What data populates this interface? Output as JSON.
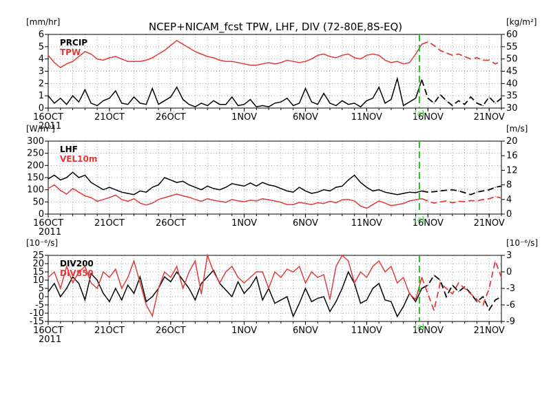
{
  "title": "NCEP+NICAM_fcst TPW, LHF, DIV (72-80E,8S-EQ)",
  "colors": {
    "black": "#000000",
    "red": "#e03a3a",
    "green": "#22bb22",
    "grid": "#a0a0a0"
  },
  "x_axis": {
    "days": 37,
    "ticks": [
      {
        "day": 0,
        "label": "16OCT"
      },
      {
        "day": 5,
        "label": "21OCT"
      },
      {
        "day": 10,
        "label": "26OCT"
      },
      {
        "day": 16,
        "label": "1NOV"
      },
      {
        "day": 21,
        "label": "6NOV"
      },
      {
        "day": 26,
        "label": "11NOV"
      },
      {
        "day": 31,
        "label": "16NOV"
      },
      {
        "day": 36,
        "label": "21NOV"
      }
    ],
    "year_label": "2011",
    "forecast_start_day": 30.3,
    "forecast_marker_label": "[a]"
  },
  "chart_data": [
    {
      "type": "line",
      "panel": "PRCIP / TPW",
      "left_axis": {
        "unit": "[mm/hr]",
        "lim": [
          0,
          6
        ],
        "ticks": [
          0,
          1,
          2,
          3,
          4,
          5,
          6
        ]
      },
      "right_axis": {
        "unit": "[kg/m²]",
        "lim": [
          30,
          60
        ],
        "ticks": [
          30,
          35,
          40,
          45,
          50,
          55,
          60
        ]
      },
      "series": [
        {
          "name": "PRCIP",
          "axis": "left",
          "color": "black",
          "x": [
            0,
            0.5,
            1,
            1.5,
            2,
            2.5,
            3,
            3.5,
            4,
            4.5,
            5,
            5.5,
            6,
            6.5,
            7,
            7.5,
            8,
            8.5,
            9,
            9.5,
            10,
            10.5,
            11,
            11.5,
            12,
            12.5,
            13,
            13.5,
            14,
            14.5,
            15,
            15.5,
            16,
            16.5,
            17,
            17.5,
            18,
            18.5,
            19,
            19.5,
            20,
            20.5,
            21,
            21.5,
            22,
            22.5,
            23,
            23.5,
            24,
            24.5,
            25,
            25.5,
            26,
            26.5,
            27,
            27.5,
            28,
            28.5,
            29,
            29.5,
            30,
            30.5,
            31,
            31.5,
            32,
            32.5,
            33,
            33.5,
            34,
            34.5,
            35,
            35.5,
            36,
            36.5,
            37
          ],
          "values": [
            1.0,
            0.4,
            0.8,
            0.3,
            1.0,
            0.5,
            1.5,
            0.4,
            0.2,
            0.6,
            0.8,
            1.4,
            0.4,
            0.3,
            0.9,
            0.4,
            0.3,
            1.6,
            0.3,
            0.6,
            0.9,
            1.7,
            0.7,
            0.3,
            0.1,
            0.4,
            0.2,
            0.6,
            0.3,
            0.3,
            0.9,
            0.2,
            0.3,
            0.7,
            0.1,
            0.2,
            0.1,
            0.4,
            0.5,
            0.8,
            0.2,
            0.4,
            1.6,
            0.5,
            0.3,
            1.2,
            0.4,
            0.2,
            0.6,
            0.3,
            0.4,
            0.1,
            0.6,
            0.8,
            1.7,
            0.4,
            0.7,
            2.4,
            0.2,
            0.5,
            0.8,
            2.3,
            0.8,
            0.4,
            1.1,
            0.6,
            0.2,
            0.6,
            0.3,
            0.9,
            0.4,
            0.2,
            0.9,
            0.4,
            0.8
          ]
        },
        {
          "name": "TPW",
          "axis": "right",
          "color": "red",
          "x": [
            0,
            0.5,
            1,
            1.5,
            2,
            2.5,
            3,
            3.5,
            4,
            4.5,
            5,
            5.5,
            6,
            6.5,
            7,
            7.5,
            8,
            8.5,
            9,
            9.5,
            10,
            10.5,
            11,
            11.5,
            12,
            12.5,
            13,
            13.5,
            14,
            14.5,
            15,
            15.5,
            16,
            16.5,
            17,
            17.5,
            18,
            18.5,
            19,
            19.5,
            20,
            20.5,
            21,
            21.5,
            22,
            22.5,
            23,
            23.5,
            24,
            24.5,
            25,
            25.5,
            26,
            26.5,
            27,
            27.5,
            28,
            28.5,
            29,
            29.5,
            30,
            30.5,
            31,
            31.5,
            32,
            32.5,
            33,
            33.5,
            34,
            34.5,
            35,
            35.5,
            36,
            36.5,
            37
          ],
          "values": [
            51.5,
            48.5,
            46.5,
            48,
            49,
            51,
            53,
            52,
            50,
            49.5,
            50.5,
            51,
            50,
            49,
            49,
            49,
            49.5,
            50.5,
            52,
            53.5,
            55.5,
            57.5,
            56,
            54.5,
            53,
            52,
            51,
            50.5,
            49.5,
            49,
            49,
            48.5,
            48,
            47.5,
            47.5,
            48,
            48.5,
            48,
            48.5,
            49.5,
            49,
            48.5,
            49,
            50,
            51.5,
            52,
            51,
            50.5,
            51.5,
            52,
            50.5,
            50,
            51.5,
            52,
            51.5,
            49.5,
            48.5,
            49,
            48,
            48.5,
            52,
            56,
            57,
            55.5,
            53.5,
            52.5,
            51.5,
            52,
            51,
            50,
            50.5,
            49.5,
            49.5,
            48,
            49
          ]
        }
      ]
    },
    {
      "type": "line",
      "panel": "LHF / VEL10m",
      "left_axis": {
        "unit": "[W/m²]",
        "lim": [
          0,
          300
        ],
        "ticks": [
          0,
          50,
          100,
          150,
          200,
          250,
          300
        ]
      },
      "right_axis": {
        "unit": "[m/s]",
        "lim": [
          0,
          20
        ],
        "ticks": [
          0,
          4,
          8,
          12,
          16,
          20
        ]
      },
      "series": [
        {
          "name": "LHF",
          "axis": "left",
          "color": "black",
          "x": [
            0,
            0.5,
            1,
            1.5,
            2,
            2.5,
            3,
            3.5,
            4,
            4.5,
            5,
            5.5,
            6,
            6.5,
            7,
            7.5,
            8,
            8.5,
            9,
            9.5,
            10,
            10.5,
            11,
            11.5,
            12,
            12.5,
            13,
            13.5,
            14,
            14.5,
            15,
            15.5,
            16,
            16.5,
            17,
            17.5,
            18,
            18.5,
            19,
            19.5,
            20,
            20.5,
            21,
            21.5,
            22,
            22.5,
            23,
            23.5,
            24,
            24.5,
            25,
            25.5,
            26,
            26.5,
            27,
            27.5,
            28,
            28.5,
            29,
            29.5,
            30,
            30.5,
            31,
            31.5,
            32,
            32.5,
            33,
            33.5,
            34,
            34.5,
            35,
            35.5,
            36,
            36.5,
            37
          ],
          "values": [
            145,
            160,
            140,
            150,
            172,
            150,
            160,
            130,
            115,
            100,
            110,
            100,
            90,
            85,
            80,
            95,
            90,
            110,
            120,
            150,
            140,
            130,
            135,
            120,
            110,
            100,
            115,
            105,
            100,
            110,
            125,
            120,
            115,
            128,
            115,
            130,
            120,
            115,
            105,
            95,
            90,
            110,
            95,
            85,
            90,
            100,
            95,
            110,
            115,
            140,
            160,
            130,
            110,
            95,
            100,
            90,
            85,
            80,
            85,
            90,
            88,
            95,
            90,
            92,
            95,
            98,
            100,
            95,
            88,
            80,
            90,
            95,
            100,
            110,
            115
          ]
        },
        {
          "name": "VEL10m",
          "axis": "right",
          "color": "red",
          "x": [
            0,
            0.5,
            1,
            1.5,
            2,
            2.5,
            3,
            3.5,
            4,
            4.5,
            5,
            5.5,
            6,
            6.5,
            7,
            7.5,
            8,
            8.5,
            9,
            9.5,
            10,
            10.5,
            11,
            11.5,
            12,
            12.5,
            13,
            13.5,
            14,
            14.5,
            15,
            15.5,
            16,
            16.5,
            17,
            17.5,
            18,
            18.5,
            19,
            19.5,
            20,
            20.5,
            21,
            21.5,
            22,
            22.5,
            23,
            23.5,
            24,
            24.5,
            25,
            25.5,
            26,
            26.5,
            27,
            27.5,
            28,
            28.5,
            29,
            29.5,
            30,
            30.5,
            31,
            31.5,
            32,
            32.5,
            33,
            33.5,
            34,
            34.5,
            35,
            35.5,
            36,
            36.5,
            37
          ],
          "values": [
            7,
            8,
            6.5,
            5.5,
            7,
            6,
            5,
            4.5,
            3.5,
            4,
            4.5,
            5.2,
            4,
            3.5,
            4.2,
            3,
            2.5,
            3,
            4,
            4.5,
            5,
            5.5,
            5,
            4.6,
            4,
            3.5,
            4.2,
            3.8,
            3.5,
            3.2,
            4,
            3.6,
            3.4,
            3.8,
            3.6,
            4.2,
            3.9,
            3.6,
            3.2,
            2.6,
            2.6,
            3.2,
            2.9,
            2.6,
            3.1,
            2.9,
            3.5,
            3.1,
            3.9,
            4,
            3.6,
            2.2,
            1.6,
            2.6,
            3.6,
            3,
            2.3,
            2.6,
            2.9,
            3.6,
            3.9,
            4.2,
            3.6,
            3,
            3.3,
            3.6,
            3.1,
            3.5,
            3.4,
            3.7,
            3.6,
            4,
            4.2,
            4.8,
            4.4
          ]
        }
      ]
    },
    {
      "type": "line",
      "panel": "DIV200 / DIV850",
      "left_axis": {
        "unit": "[10⁻⁶/s]",
        "lim": [
          -15,
          25
        ],
        "ticks": [
          -15,
          -10,
          -5,
          0,
          5,
          10,
          15,
          20,
          25
        ]
      },
      "right_axis": {
        "unit": "[10⁻⁶/s]",
        "lim": [
          -9,
          3
        ],
        "ticks": [
          -9,
          -6,
          -3,
          0,
          3
        ]
      },
      "series": [
        {
          "name": "DIV200",
          "axis": "left",
          "color": "black",
          "x": [
            0,
            0.5,
            1,
            1.5,
            2,
            2.5,
            3,
            3.5,
            4,
            4.5,
            5,
            5.5,
            6,
            6.5,
            7,
            7.5,
            8,
            8.5,
            9,
            9.5,
            10,
            10.5,
            11,
            11.5,
            12,
            12.5,
            13,
            13.5,
            14,
            14.5,
            15,
            15.5,
            16,
            16.5,
            17,
            17.5,
            18,
            18.5,
            19,
            19.5,
            20,
            20.5,
            21,
            21.5,
            22,
            22.5,
            23,
            23.5,
            24,
            24.5,
            25,
            25.5,
            26,
            26.5,
            27,
            27.5,
            28,
            28.5,
            29,
            29.5,
            30,
            30.5,
            31,
            31.5,
            32,
            32.5,
            33,
            33.5,
            34,
            34.5,
            35,
            35.5,
            36,
            36.5,
            37
          ],
          "values": [
            3,
            8,
            0,
            5,
            12,
            8,
            -2,
            14,
            10,
            2,
            -3,
            5,
            -2,
            7,
            2,
            12,
            -3,
            0,
            5,
            12,
            9,
            15,
            10,
            5,
            -2,
            8,
            12,
            16,
            8,
            4,
            0,
            9,
            2,
            6,
            12,
            -2,
            5,
            -4,
            -2,
            0,
            -12,
            -4,
            5,
            -3,
            -1,
            0,
            -9,
            -3,
            5,
            15,
            8,
            -4,
            -2,
            5,
            8,
            -2,
            -3,
            -12,
            -6,
            2,
            -3,
            5,
            7,
            13,
            10,
            0,
            7,
            3,
            6,
            2,
            -3,
            0,
            -8,
            -2,
            0
          ]
        },
        {
          "name": "DIV850",
          "axis": "right",
          "color": "red",
          "x": [
            0,
            0.5,
            1,
            1.5,
            2,
            2.5,
            3,
            3.5,
            4,
            4.5,
            5,
            5.5,
            6,
            6.5,
            7,
            7.5,
            8,
            8.5,
            9,
            9.5,
            10,
            10.5,
            11,
            11.5,
            12,
            12.5,
            13,
            13.5,
            14,
            14.5,
            15,
            15.5,
            16,
            16.5,
            17,
            17.5,
            18,
            18.5,
            19,
            19.5,
            20,
            20.5,
            21,
            21.5,
            22,
            22.5,
            23,
            23.5,
            24,
            24.5,
            25,
            25.5,
            26,
            26.5,
            27,
            27.5,
            28,
            28.5,
            29,
            29.5,
            30,
            30.5,
            31,
            31.5,
            32,
            32.5,
            33,
            33.5,
            34,
            34.5,
            35,
            35.5,
            36,
            36.5,
            37
          ],
          "values": [
            -1,
            0,
            -3,
            1,
            -2,
            0,
            1,
            -2,
            -3,
            0,
            -1,
            0.5,
            -3,
            -1,
            2,
            -2,
            -6,
            -8,
            -3,
            0,
            -1,
            1,
            -3,
            0,
            2,
            -4,
            3,
            0,
            -2,
            0,
            1,
            -1,
            -2,
            -1,
            0,
            0,
            -3,
            0,
            -1,
            0.5,
            0,
            1,
            -2,
            0,
            -1,
            -0.5,
            -5,
            1,
            3,
            2,
            -2,
            0,
            -1,
            1,
            2,
            0,
            1,
            -2,
            -1,
            -4,
            -5,
            -1,
            -4,
            -7,
            -2,
            -3,
            -4,
            -2,
            -3,
            -4,
            -5,
            -6,
            -3,
            2,
            -1
          ]
        }
      ]
    }
  ]
}
